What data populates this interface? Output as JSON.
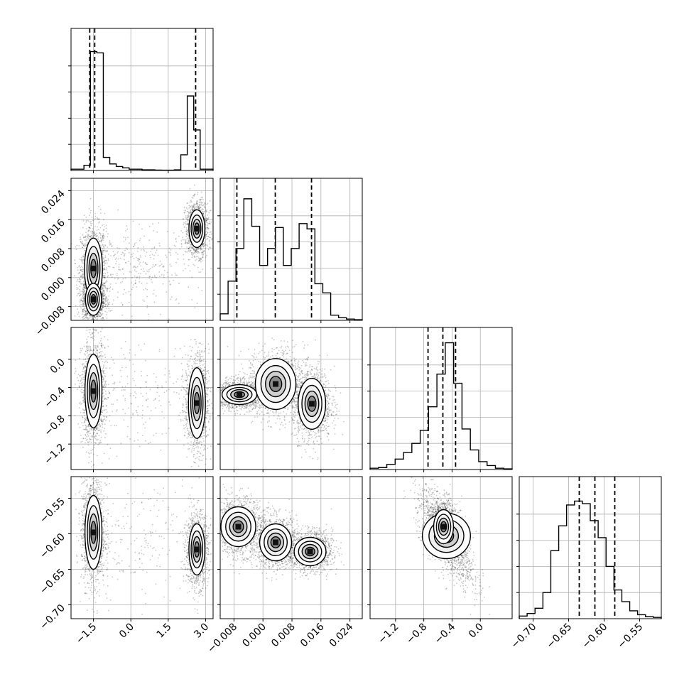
{
  "chart_data": {
    "type": "corner",
    "title": "",
    "grid": true,
    "parameters": [
      {
        "index": 0,
        "xlabel": "",
        "ylabel": "",
        "range": [
          -2.4,
          3.3
        ],
        "ticks": [
          -1.5,
          0.0,
          1.5,
          3.0
        ],
        "tick_labels": [
          "−1.5",
          "0.0",
          "1.5",
          "3.0"
        ],
        "quantiles": [
          -1.65,
          -1.45,
          2.6
        ]
      },
      {
        "index": 1,
        "xlabel": "",
        "ylabel": "",
        "range": [
          -0.0118,
          0.0274
        ],
        "ticks": [
          -0.008,
          0.0,
          0.008,
          0.016,
          0.024
        ],
        "tick_labels": [
          "−0.008",
          "0.000",
          "0.008",
          "0.016",
          "0.024"
        ],
        "quantiles": [
          -0.0072,
          0.0034,
          0.0134
        ]
      },
      {
        "index": 2,
        "xlabel": "",
        "ylabel": "",
        "range": [
          -1.56,
          0.45
        ],
        "ticks": [
          -1.2,
          -0.8,
          -0.4,
          0.0
        ],
        "tick_labels": [
          "−1.2",
          "−0.8",
          "−0.4",
          "0.0"
        ],
        "quantiles": [
          -0.74,
          -0.53,
          -0.35
        ]
      },
      {
        "index": 3,
        "xlabel": "",
        "ylabel": "",
        "range": [
          -0.7195,
          -0.5195
        ],
        "ticks": [
          -0.7,
          -0.65,
          -0.6,
          -0.55
        ],
        "tick_labels": [
          "−0.70",
          "−0.65",
          "−0.60",
          "−0.55"
        ],
        "quantiles": [
          -0.635,
          -0.613,
          -0.585
        ]
      }
    ],
    "histograms": [
      {
        "param": 0,
        "bins": [
          -2.4,
          3.3
        ],
        "values": [
          0.01,
          0.01,
          0.04,
          0.91,
          0.9,
          0.1,
          0.05,
          0.03,
          0.02,
          0.01,
          0.01,
          0.005,
          0.005,
          0.003,
          0.002,
          0.002,
          0.005,
          0.12,
          0.57,
          0.31,
          0.01,
          0.01
        ]
      },
      {
        "param": 1,
        "bins": [
          -0.0118,
          0.0274
        ],
        "values": [
          0.05,
          0.3,
          0.55,
          0.93,
          0.72,
          0.42,
          0.55,
          0.71,
          0.42,
          0.55,
          0.74,
          0.7,
          0.28,
          0.21,
          0.04,
          0.02,
          0.01,
          0.005
        ]
      },
      {
        "param": 2,
        "bins": [
          -1.56,
          0.45
        ],
        "values": [
          0.01,
          0.015,
          0.04,
          0.08,
          0.13,
          0.2,
          0.3,
          0.48,
          0.73,
          0.97,
          0.66,
          0.31,
          0.15,
          0.06,
          0.03,
          0.01,
          0.005
        ]
      },
      {
        "param": 3,
        "bins": [
          -0.7195,
          -0.5195
        ],
        "values": [
          0.02,
          0.04,
          0.08,
          0.2,
          0.52,
          0.71,
          0.87,
          0.9,
          0.88,
          0.75,
          0.62,
          0.4,
          0.22,
          0.13,
          0.06,
          0.03,
          0.015,
          0.01
        ]
      }
    ],
    "pairs": [
      {
        "x": 0,
        "y": 1,
        "clusters": [
          {
            "cx": -1.5,
            "cy": 0.0025,
            "sx": 0.18,
            "sy": 0.0042,
            "rot": 0,
            "w": 1.0
          },
          {
            "cx": -1.5,
            "cy": -0.006,
            "sx": 0.16,
            "sy": 0.0022,
            "rot": 0,
            "w": 1.0
          },
          {
            "cx": 2.65,
            "cy": 0.0135,
            "sx": 0.16,
            "sy": 0.0026,
            "rot": 0,
            "w": 0.9
          },
          {
            "cx": 0.2,
            "cy": 0.003,
            "sx": 0.9,
            "sy": 0.004,
            "rot": 0,
            "w": 0.25
          }
        ]
      },
      {
        "x": 0,
        "y": 2,
        "clusters": [
          {
            "cx": -1.5,
            "cy": -0.45,
            "sx": 0.17,
            "sy": 0.26,
            "rot": 0,
            "w": 1.0
          },
          {
            "cx": 2.65,
            "cy": -0.62,
            "sx": 0.17,
            "sy": 0.25,
            "rot": 0,
            "w": 0.85
          },
          {
            "cx": 0.4,
            "cy": -0.5,
            "sx": 0.9,
            "sy": 0.3,
            "rot": 0,
            "w": 0.15
          }
        ]
      },
      {
        "x": 0,
        "y": 3,
        "clusters": [
          {
            "cx": -1.5,
            "cy": -0.598,
            "sx": 0.17,
            "sy": 0.026,
            "rot": 0,
            "w": 1.0
          },
          {
            "cx": 2.65,
            "cy": -0.622,
            "sx": 0.16,
            "sy": 0.018,
            "rot": 0,
            "w": 0.8
          },
          {
            "cx": 0.4,
            "cy": -0.61,
            "sx": 0.9,
            "sy": 0.03,
            "rot": 0,
            "w": 0.15
          }
        ]
      },
      {
        "x": 1,
        "y": 2,
        "clusters": [
          {
            "cx": -0.0065,
            "cy": -0.5,
            "sx": 0.0024,
            "sy": 0.07,
            "rot": 0,
            "w": 1.0
          },
          {
            "cx": 0.0035,
            "cy": -0.35,
            "sx": 0.0028,
            "sy": 0.18,
            "rot": 0,
            "w": 0.7
          },
          {
            "cx": 0.0135,
            "cy": -0.63,
            "sx": 0.0019,
            "sy": 0.18,
            "rot": 0,
            "w": 0.9
          }
        ]
      },
      {
        "x": 1,
        "y": 3,
        "clusters": [
          {
            "cx": -0.0068,
            "cy": -0.59,
            "sx": 0.0024,
            "sy": 0.014,
            "rot": 0,
            "w": 1.0
          },
          {
            "cx": 0.0035,
            "cy": -0.612,
            "sx": 0.0022,
            "sy": 0.013,
            "rot": 0,
            "w": 0.8
          },
          {
            "cx": 0.013,
            "cy": -0.625,
            "sx": 0.0022,
            "sy": 0.01,
            "rot": 0,
            "w": 0.9
          }
        ]
      },
      {
        "x": 2,
        "y": 3,
        "clusters": [
          {
            "cx": -0.48,
            "cy": -0.603,
            "sx": 0.17,
            "sy": 0.016,
            "rot": -0.6,
            "w": 1.0
          },
          {
            "cx": -0.52,
            "cy": -0.59,
            "sx": 0.07,
            "sy": 0.012,
            "rot": 0,
            "w": 0.8
          }
        ]
      }
    ]
  }
}
